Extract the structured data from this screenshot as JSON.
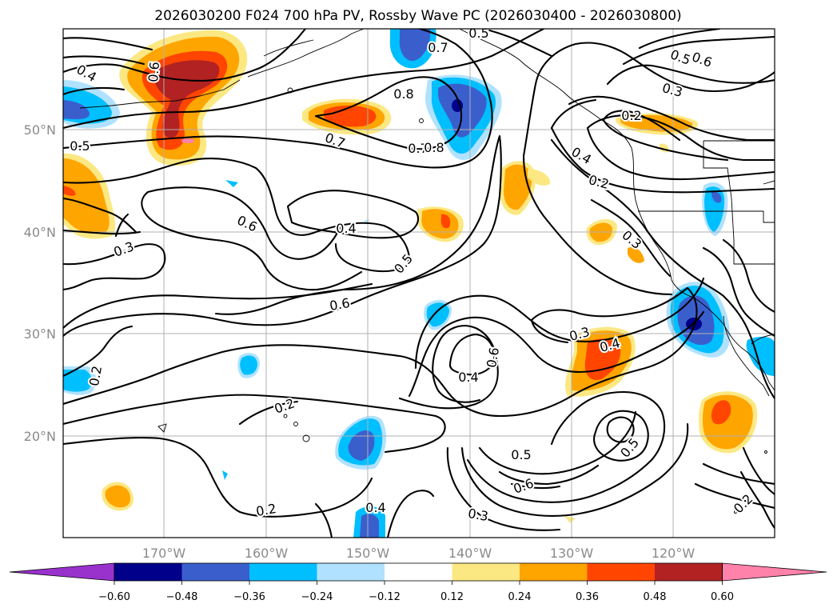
{
  "title": "2026030200 F024 700 hPa PV, Rossby Wave PC (2026030400 - 2026030800)",
  "lat_labels": [
    "50°N",
    "40°N",
    "30°N",
    "20°N"
  ],
  "lon_labels": [
    "170°W",
    "160°W",
    "150°W",
    "140°W",
    "130°W",
    "120°W"
  ],
  "colorbar": {
    "ticks": [
      "−0.60",
      "−0.48",
      "−0.36",
      "−0.24",
      "−0.12",
      "0.12",
      "0.24",
      "0.36",
      "0.48",
      "0.60"
    ],
    "colors": [
      "#9932cc",
      "#00008b",
      "#3a5fcd",
      "#00bfff",
      "#b0e2ff",
      "#ffffff",
      "#fce883",
      "#ffa500",
      "#ff4500",
      "#b22222",
      "#ff82ab"
    ]
  },
  "contour_labels": [
    "0.7",
    "0.8",
    "0.7",
    "0.5",
    "0.4",
    "0.5",
    "0.6",
    "0.7",
    "0.3",
    "0.2",
    "0.5",
    "0.6",
    "0.8",
    "0.4",
    "0.5",
    "0.6",
    "0.6",
    "0.4",
    "0.6",
    "0.3",
    "0.4",
    "0.5",
    "0.6",
    "0.5",
    "0.3",
    "0.4",
    "0.2",
    "0.3",
    "0.4",
    "0.3",
    "0.2",
    "0.2",
    "0.2",
    "0.2"
  ]
}
